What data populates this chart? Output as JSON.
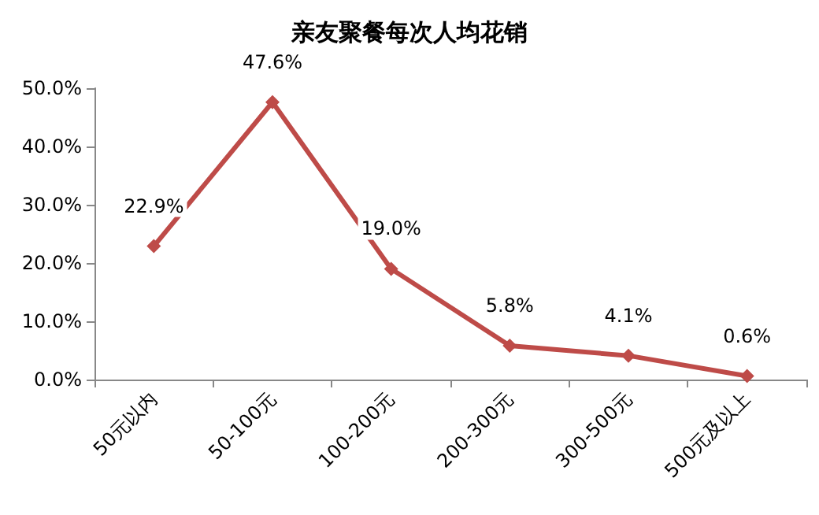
{
  "chart_data": {
    "type": "line",
    "title": "亲友聚餐每次人均花销",
    "categories": [
      "50元以内",
      "50-100元",
      "100-200元",
      "200-300元",
      "300-500元",
      "500元及以上"
    ],
    "series": [
      {
        "color": "#be4b48",
        "values": [
          22.9,
          47.6,
          19.0,
          5.8,
          4.1,
          0.6
        ],
        "value_labels": [
          "22.9%",
          "47.6%",
          "19.0%",
          "5.8%",
          "4.1%",
          "0.6%"
        ]
      }
    ],
    "ylim": [
      0,
      50
    ],
    "yticks": [
      {
        "value": 0,
        "label": "0.0%"
      },
      {
        "value": 10,
        "label": "10.0%"
      },
      {
        "value": 20,
        "label": "20.0%"
      },
      {
        "value": 30,
        "label": "30.0%"
      },
      {
        "value": 40,
        "label": "40.0%"
      },
      {
        "value": 50,
        "label": "50.0%"
      }
    ],
    "grid": false,
    "marker": "diamond",
    "line_style": "solid"
  }
}
